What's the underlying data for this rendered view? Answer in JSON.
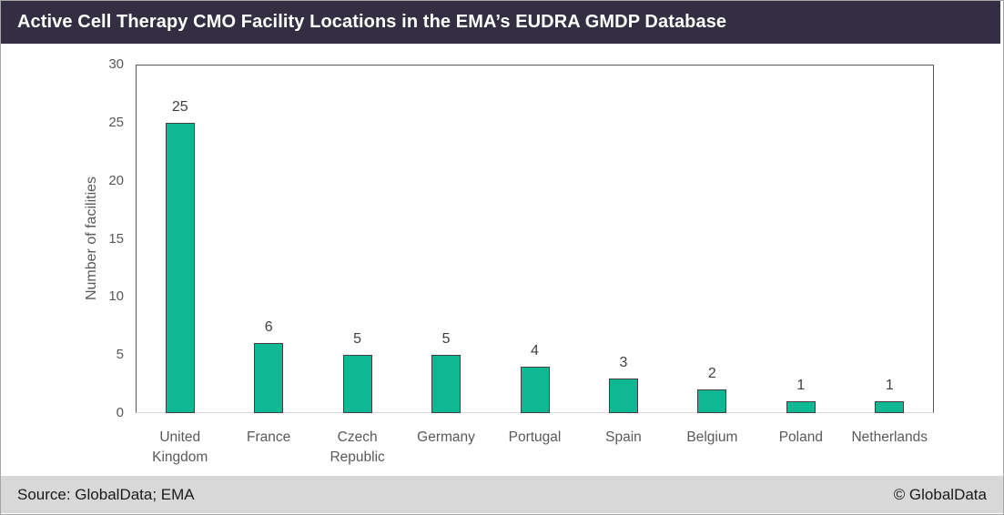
{
  "header": {
    "title": "Active Cell Therapy CMO Facility Locations in the EMA’s EUDRA GMDP Database"
  },
  "footer": {
    "source": "Source: GlobalData; EMA",
    "copyright": "© GlobalData"
  },
  "colors": {
    "title_bar": "#332e42",
    "title_text": "#ffffff",
    "bar_fill": "#0db893",
    "bar_border": "#404040",
    "axis_text": "#595959",
    "value_label": "#404040",
    "plot_border": "#595959",
    "baseline": "#d9d9d9",
    "footer_bg": "#d8d8d8",
    "footer_text": "#1a1a1a"
  },
  "chart_data": {
    "type": "bar",
    "title": "Active Cell Therapy CMO Facility Locations in the EMA’s EUDRA GMDP Database",
    "categories": [
      "United Kingdom",
      "France",
      "Czech Republic",
      "Germany",
      "Portugal",
      "Spain",
      "Belgium",
      "Poland",
      "Netherlands"
    ],
    "values": [
      25,
      6,
      5,
      5,
      4,
      3,
      2,
      1,
      1
    ],
    "xlabel": "",
    "ylabel": "Number of facilities",
    "ylim": [
      0,
      30
    ],
    "yticks": [
      0,
      5,
      10,
      15,
      20,
      25,
      30
    ],
    "grid": false,
    "legend": false,
    "data_labels": true
  }
}
